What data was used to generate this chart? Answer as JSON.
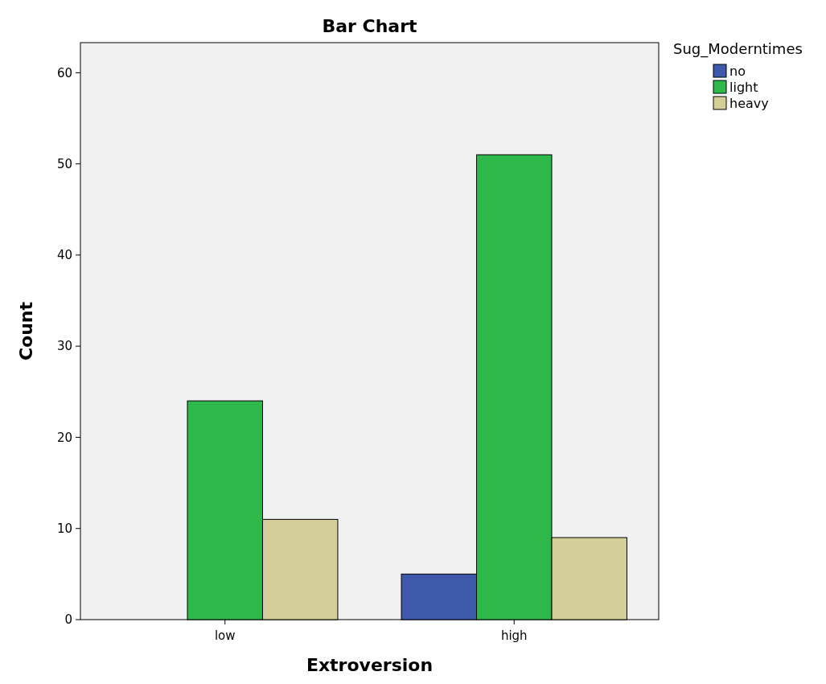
{
  "chart_data": {
    "type": "bar",
    "title": "Bar Chart",
    "xlabel": "Extroversion",
    "ylabel": "Count",
    "legend_title": "Sug_Moderntimes",
    "categories": [
      "low",
      "high"
    ],
    "series": [
      {
        "name": "no",
        "color": "#3e58ac",
        "values": [
          null,
          5
        ]
      },
      {
        "name": "light",
        "color": "#2fb84a",
        "values": [
          24,
          51
        ]
      },
      {
        "name": "heavy",
        "color": "#d4cf98",
        "values": [
          11,
          9
        ]
      }
    ],
    "ylim": [
      0,
      63.3
    ],
    "yticks": [
      0,
      10,
      20,
      30,
      40,
      50,
      60
    ],
    "grid": false,
    "legend": "top right"
  }
}
